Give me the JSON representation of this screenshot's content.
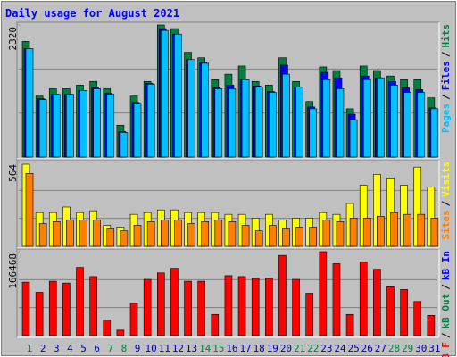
{
  "chart_data": [
    {
      "type": "bar",
      "title": "Daily usage for August 2021",
      "ylim": [
        0,
        2320
      ],
      "yticks": [
        2320
      ],
      "grid_divisions": 3,
      "legend_separator": "/",
      "series": [
        {
          "name": "Hits",
          "color": "#008040",
          "values": [
            2032,
            1072,
            1200,
            1200,
            1264,
            1328,
            1200,
            560,
            1072,
            1328,
            2320,
            2256,
            1840,
            1744,
            1360,
            1456,
            1600,
            1328,
            1264,
            1744,
            1328,
            976,
            1584,
            1520,
            848,
            1600,
            1520,
            1424,
            1360,
            1360,
            1040
          ]
        },
        {
          "name": "Files",
          "color": "#0000ff",
          "values": [
            1904,
            1024,
            1104,
            1104,
            1168,
            1216,
            1120,
            448,
            960,
            1296,
            2256,
            2160,
            1712,
            1664,
            1216,
            1264,
            1360,
            1248,
            1152,
            1616,
            1232,
            880,
            1488,
            1392,
            752,
            1424,
            1392,
            1328,
            1216,
            1184,
            864
          ]
        },
        {
          "name": "Pages",
          "color": "#00c0ff",
          "values": [
            1904,
            1008,
            1104,
            1104,
            1168,
            1200,
            1104,
            432,
            944,
            1280,
            2224,
            2160,
            1712,
            1648,
            1200,
            1200,
            1360,
            1232,
            1136,
            1456,
            1232,
            848,
            1360,
            1200,
            656,
            1360,
            1392,
            1264,
            1136,
            1136,
            848
          ]
        }
      ]
    },
    {
      "type": "bar",
      "ylim": [
        0,
        564
      ],
      "yticks": [
        564
      ],
      "grid_divisions": 3,
      "legend_separator": "/",
      "series": [
        {
          "name": "Visits",
          "color": "#ffff00",
          "values": [
            552,
            227,
            227,
            264,
            227,
            239,
            141,
            129,
            215,
            227,
            245,
            245,
            227,
            227,
            227,
            215,
            215,
            190,
            215,
            178,
            190,
            190,
            227,
            215,
            288,
            411,
            484,
            460,
            411,
            533,
            398
          ]
        },
        {
          "name": "Sites",
          "color": "#ff8000",
          "values": [
            490,
            153,
            166,
            178,
            178,
            178,
            117,
            104,
            141,
            166,
            178,
            178,
            153,
            166,
            178,
            166,
            141,
            104,
            141,
            117,
            129,
            129,
            178,
            166,
            190,
            190,
            202,
            227,
            215,
            215,
            190
          ]
        }
      ]
    },
    {
      "type": "bar",
      "ylim": [
        0,
        166468
      ],
      "yticks": [
        166468
      ],
      "grid_divisions": 3,
      "legend_separator": "/",
      "categories": [
        "1",
        "2",
        "3",
        "4",
        "5",
        "6",
        "7",
        "8",
        "9",
        "10",
        "11",
        "12",
        "13",
        "14",
        "15",
        "16",
        "17",
        "18",
        "19",
        "20",
        "21",
        "22",
        "23",
        "24",
        "25",
        "26",
        "27",
        "28",
        "29",
        "30",
        "31"
      ],
      "category_colors": [
        "#008040",
        "#0000a0",
        "#0000a0",
        "#0000a0",
        "#0000a0",
        "#0000a0",
        "#008040",
        "#008040",
        "#0000a0",
        "#0000a0",
        "#0000a0",
        "#0000a0",
        "#0000a0",
        "#008040",
        "#008040",
        "#0000a0",
        "#0000a0",
        "#0000a0",
        "#0000a0",
        "#0000a0",
        "#008040",
        "#008040",
        "#0000a0",
        "#0000a0",
        "#0000a0",
        "#0000a0",
        "#0000a0",
        "#008040",
        "#008040",
        "#0000a0",
        "#0000a0"
      ],
      "series": [
        {
          "name": "kB In",
          "color": "#0000ff"
        },
        {
          "name": "kB Out",
          "color": "#008040"
        },
        {
          "name": "kB F",
          "color": "#ff0000",
          "values": [
            106082,
            85963,
            107911,
            104253,
            135346,
            117056,
            31093,
            10974,
            64015,
            111569,
            124372,
            133517,
            107911,
            107911,
            42067,
            118885,
            117056,
            113398,
            113398,
            159123,
            111569,
            84134,
            166468,
            142662,
            42067,
            146320,
            131688,
            96937,
            91450,
            67673,
            40238
          ]
        }
      ]
    }
  ]
}
